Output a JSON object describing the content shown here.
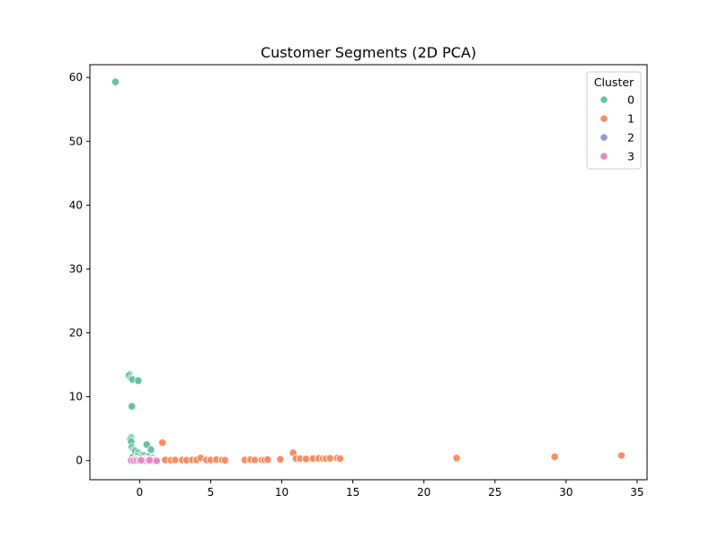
{
  "chart_data": {
    "type": "scatter",
    "title": "Customer Segments (2D PCA)",
    "xlabel": "",
    "ylabel": "",
    "xlim": [
      -3.5,
      35.7
    ],
    "ylim": [
      -3.0,
      62.0
    ],
    "xticks": [
      0,
      5,
      10,
      15,
      20,
      25,
      30,
      35
    ],
    "yticks": [
      0,
      10,
      20,
      30,
      40,
      50,
      60
    ],
    "grid": false,
    "legend": {
      "title": "Cluster",
      "placement": "top-right"
    },
    "series": [
      {
        "name": "0",
        "color": "#66c2a5",
        "points": [
          [
            -1.7,
            59.3
          ],
          [
            -0.7,
            13.5
          ],
          [
            -0.75,
            13.3
          ],
          [
            -0.6,
            12.9
          ],
          [
            -0.5,
            12.7
          ],
          [
            -0.1,
            12.5
          ],
          [
            -0.55,
            8.5
          ],
          [
            -0.6,
            3.6
          ],
          [
            -0.65,
            3.3
          ],
          [
            -0.6,
            3.0
          ],
          [
            0.5,
            2.5
          ],
          [
            -0.55,
            2.1
          ],
          [
            -0.4,
            1.7
          ],
          [
            -0.3,
            1.5
          ],
          [
            -0.1,
            1.2
          ],
          [
            0.8,
            1.7
          ],
          [
            0.1,
            0.9
          ],
          [
            0.3,
            0.8
          ],
          [
            -0.2,
            0.7
          ],
          [
            0.6,
            0.6
          ],
          [
            -0.5,
            0.5
          ],
          [
            0.0,
            0.4
          ],
          [
            0.4,
            0.3
          ],
          [
            -0.3,
            0.3
          ],
          [
            0.9,
            0.4
          ]
        ]
      },
      {
        "name": "1",
        "color": "#fc8d62",
        "points": [
          [
            1.6,
            2.8
          ],
          [
            1.2,
            0.1
          ],
          [
            1.8,
            0.1
          ],
          [
            2.2,
            0.05
          ],
          [
            2.5,
            0.1
          ],
          [
            3.0,
            0.1
          ],
          [
            3.3,
            0.05
          ],
          [
            3.7,
            0.1
          ],
          [
            4.0,
            0.1
          ],
          [
            4.3,
            0.4
          ],
          [
            4.7,
            0.1
          ],
          [
            5.0,
            0.1
          ],
          [
            5.4,
            0.15
          ],
          [
            5.8,
            0.1
          ],
          [
            6.0,
            0.05
          ],
          [
            7.4,
            0.1
          ],
          [
            7.8,
            0.15
          ],
          [
            8.1,
            0.1
          ],
          [
            8.6,
            0.1
          ],
          [
            8.8,
            0.1
          ],
          [
            9.0,
            0.15
          ],
          [
            9.9,
            0.2
          ],
          [
            10.8,
            1.2
          ],
          [
            11.0,
            0.3
          ],
          [
            11.3,
            0.3
          ],
          [
            11.7,
            0.25
          ],
          [
            12.2,
            0.3
          ],
          [
            12.6,
            0.35
          ],
          [
            12.9,
            0.3
          ],
          [
            13.1,
            0.3
          ],
          [
            13.4,
            0.35
          ],
          [
            13.9,
            0.4
          ],
          [
            14.1,
            0.3
          ],
          [
            22.3,
            0.4
          ],
          [
            29.2,
            0.6
          ],
          [
            33.9,
            0.8
          ]
        ]
      },
      {
        "name": "2",
        "color": "#8da0cb",
        "points": [
          [
            -0.4,
            0.15
          ],
          [
            -0.2,
            0.1
          ],
          [
            0.0,
            0.2
          ],
          [
            0.2,
            0.1
          ],
          [
            0.4,
            0.15
          ],
          [
            0.6,
            0.1
          ],
          [
            0.8,
            0.2
          ],
          [
            1.0,
            0.1
          ],
          [
            -0.1,
            0.05
          ],
          [
            0.5,
            0.05
          ]
        ]
      },
      {
        "name": "3",
        "color": "#e78ac3",
        "points": [
          [
            -0.6,
            0.0
          ],
          [
            -0.4,
            -0.05
          ],
          [
            -0.2,
            0.0
          ],
          [
            0.0,
            -0.05
          ],
          [
            0.2,
            0.0
          ],
          [
            0.4,
            -0.05
          ],
          [
            0.6,
            0.0
          ],
          [
            0.8,
            -0.05
          ],
          [
            1.0,
            0.0
          ],
          [
            1.2,
            -0.05
          ],
          [
            0.1,
            0.05
          ],
          [
            0.7,
            0.05
          ]
        ]
      }
    ]
  }
}
